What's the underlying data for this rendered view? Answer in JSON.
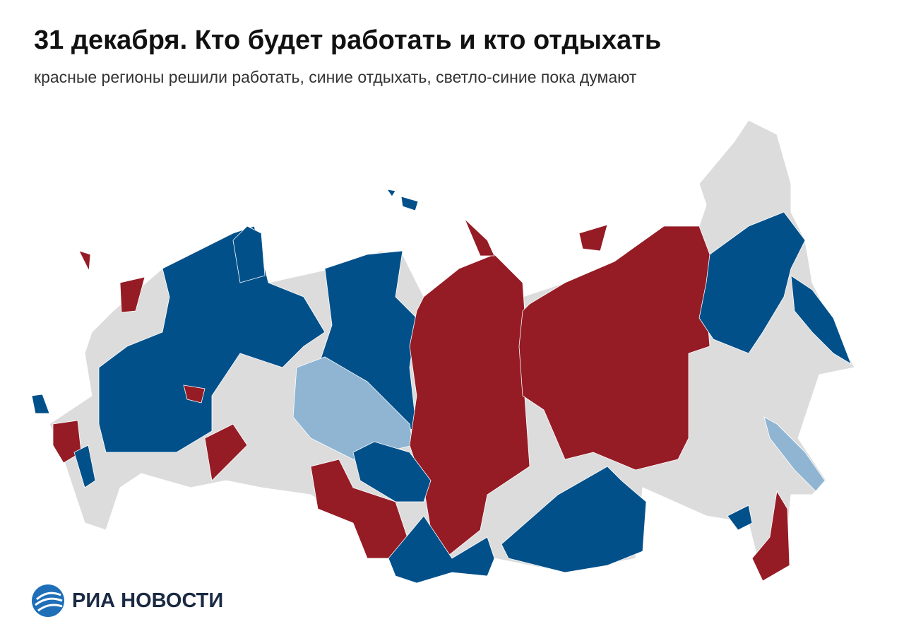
{
  "header": {
    "title": "31 декабря. Кто будет работать и кто отдыхать",
    "subtitle": "красные регионы решили работать, синие отдыхать, светло-синие пока думают"
  },
  "footer": {
    "logo": "РИА НОВОСТИ"
  }
}
